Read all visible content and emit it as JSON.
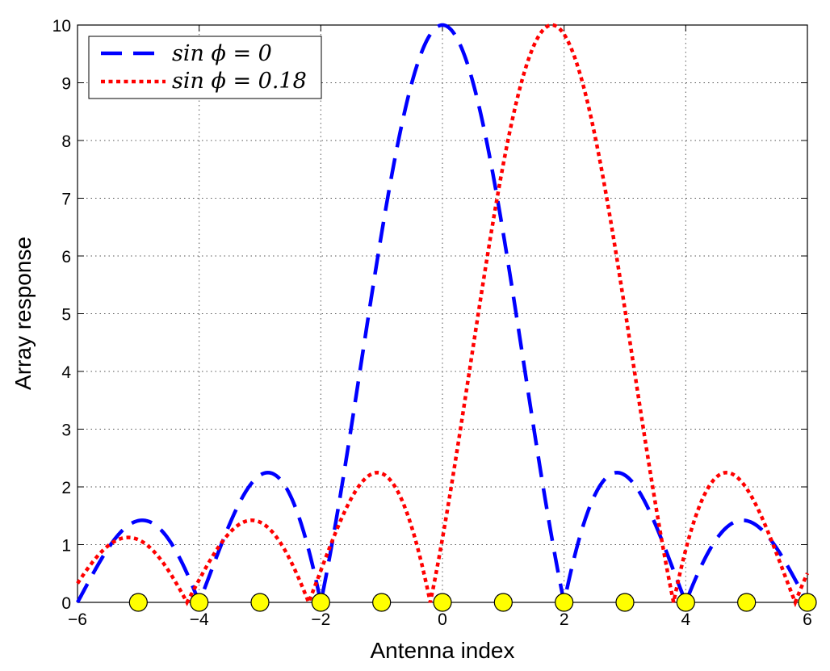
{
  "chart_data": {
    "type": "line",
    "xlabel": "Antenna index",
    "ylabel": "Array response",
    "xlim": [
      -6,
      6
    ],
    "ylim": [
      0,
      10
    ],
    "x_ticks": [
      "−6",
      "−4",
      "−2",
      "0",
      "2",
      "4",
      "6"
    ],
    "y_ticks": [
      "0",
      "1",
      "2",
      "3",
      "4",
      "5",
      "6",
      "7",
      "8",
      "9",
      "10"
    ],
    "grid": true,
    "legend_position": "top-left",
    "array_size": 10,
    "series": [
      {
        "name": "sin ϕ = 0",
        "sin_phi": 0,
        "color": "#0000ff",
        "style": "dashed"
      },
      {
        "name": "sin ϕ = 0.18",
        "sin_phi": 0.18,
        "color": "#ff0000",
        "style": "dotted"
      }
    ],
    "markers": {
      "x": [
        -5,
        -4,
        -3,
        -2,
        -1,
        0,
        1,
        2,
        3,
        4,
        5,
        6
      ],
      "y": [
        0,
        0,
        0,
        0,
        0,
        0,
        0,
        0,
        0,
        0,
        0,
        0
      ],
      "color": "#ffff00"
    }
  }
}
